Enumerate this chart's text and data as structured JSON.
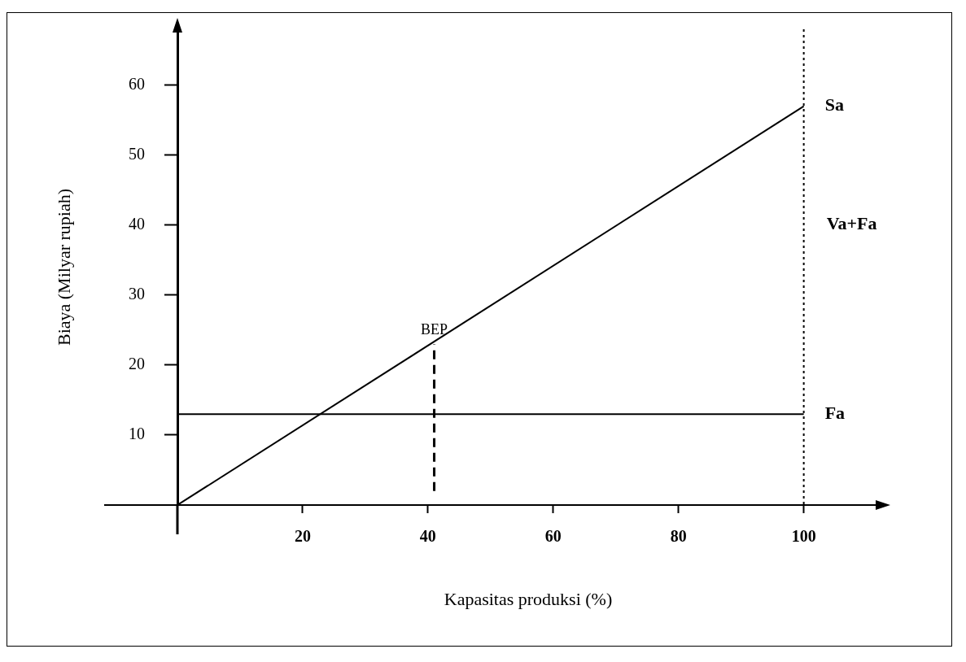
{
  "chart_data": {
    "type": "line",
    "xlabel": "Kapasitas produksi (%)",
    "ylabel": "Biaya (Milyar rupiah)",
    "series": [
      {
        "name": "Sa",
        "color": "#000000",
        "x": [
          0,
          100
        ],
        "values": [
          0,
          57
        ]
      },
      {
        "name": "Fa",
        "color": "#000000",
        "x": [
          0,
          100
        ],
        "values": [
          13,
          13
        ]
      },
      {
        "name": "BEP",
        "color": "#000000",
        "x": [
          41,
          41
        ],
        "values": [
          2,
          23
        ],
        "line_style": "dashed"
      }
    ],
    "xlim": [
      0,
      112
    ],
    "ylim": [
      0,
      68
    ],
    "xticks": [
      20,
      40,
      60,
      80,
      100
    ],
    "yticks": [
      10,
      20,
      30,
      40,
      50,
      60
    ],
    "ref_lines": [
      {
        "axis": "x",
        "value": 100,
        "label": "Va+Fa",
        "color": "#000000",
        "line_style": "dotted"
      }
    ],
    "grid": false,
    "legend": false,
    "marker": "none",
    "line_style": "solid"
  }
}
